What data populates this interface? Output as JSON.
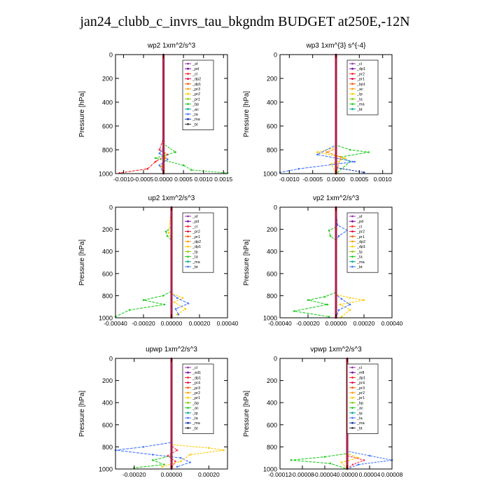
{
  "title": "jan24_clubb_c_invrs_tau_bkgndm  BUDGET at250E,-12N",
  "chart_data": [
    {
      "type": "line",
      "title": "wp2   1xm^2/s^3",
      "ylabel": "Pressure [hPa]",
      "xlim": [
        -0.0012,
        0.0016
      ],
      "ylim": [
        1000,
        0
      ],
      "yticks": [
        0,
        200,
        400,
        600,
        800,
        1000
      ],
      "xticks": [
        -0.001,
        -0.0005,
        0.0,
        0.0005,
        0.001,
        0.0015
      ],
      "xtick_labels": [
        "-0.0010",
        "-0.0005",
        "0.0000",
        "0.0005",
        "0.0010",
        "0.0015"
      ],
      "legend": [
        "_sf",
        "_pd",
        "_cl",
        "_dp2",
        "_dp1",
        "_pr3",
        "_pr2",
        "_pr1",
        "_bp",
        "_ac",
        "_ta",
        "_ma",
        "_bt"
      ],
      "series": [
        {
          "name": "_cl",
          "color": "#ff2020",
          "values": [
            [
              0,
              0
            ],
            [
              0,
              700
            ],
            [
              -0.0001,
              800
            ],
            [
              0.0001,
              840
            ],
            [
              -0.0002,
              900
            ],
            [
              -0.0004,
              960
            ],
            [
              -0.0011,
              995
            ]
          ]
        },
        {
          "name": "_pr1",
          "color": "#22cc22",
          "values": [
            [
              0,
              0
            ],
            [
              0,
              750
            ],
            [
              0.0003,
              820
            ],
            [
              -0.0002,
              870
            ],
            [
              0.0005,
              930
            ],
            [
              0.0007,
              970
            ],
            [
              0.0016,
              995
            ]
          ]
        },
        {
          "name": "_ta",
          "color": "#4477ff",
          "values": [
            [
              0,
              0
            ],
            [
              0,
              780
            ],
            [
              -0.0001,
              830
            ],
            [
              0.0001,
              880
            ],
            [
              -0.0001,
              930
            ],
            [
              0,
              1000
            ]
          ]
        },
        {
          "name": "_bp",
          "color": "#ff9900",
          "values": [
            [
              0,
              0
            ],
            [
              0,
              800
            ],
            [
              5e-05,
              870
            ],
            [
              -5e-05,
              940
            ],
            [
              0,
              1000
            ]
          ]
        },
        {
          "name": "_dp1",
          "color": "#9900cc",
          "values": [
            [
              0,
              0
            ],
            [
              0,
              1000
            ]
          ]
        }
      ]
    },
    {
      "type": "line",
      "title": "wp3   1xm^{3} s^{-4}",
      "ylabel": "Pressure [hPa]",
      "xlim": [
        -0.0012,
        0.0012
      ],
      "ylim": [
        1000,
        0
      ],
      "yticks": [
        0,
        200,
        400,
        600,
        800,
        1000
      ],
      "xticks": [
        -0.001,
        -0.0005,
        0.0,
        0.0005,
        0.001
      ],
      "xtick_labels": [
        "-0.0010",
        "-0.0005",
        "0.0000",
        "0.0005",
        "0.0010"
      ],
      "legend": [
        "_cl",
        "_dp1",
        "_pr2",
        "_pr1",
        "_bp1",
        "_ac",
        "_tp",
        "_ta",
        "_ma",
        "_bt"
      ],
      "series": [
        {
          "name": "_ac",
          "color": "#22cc22",
          "values": [
            [
              0,
              0
            ],
            [
              0,
              760
            ],
            [
              0.0003,
              800
            ],
            [
              0.0007,
              820
            ],
            [
              0.0001,
              860
            ],
            [
              0.0003,
              900
            ],
            [
              0,
              1000
            ]
          ]
        },
        {
          "name": "_pr2",
          "color": "#ffcc00",
          "values": [
            [
              0,
              0
            ],
            [
              0,
              780
            ],
            [
              -0.0004,
              820
            ],
            [
              0.0002,
              870
            ],
            [
              -0.0001,
              920
            ],
            [
              0,
              1000
            ]
          ]
        },
        {
          "name": "_ta",
          "color": "#4477ff",
          "values": [
            [
              0,
              0
            ],
            [
              0,
              760
            ],
            [
              -0.0004,
              840
            ],
            [
              0.0004,
              900
            ],
            [
              -0.0008,
              960
            ],
            [
              -0.0012,
              990
            ]
          ]
        },
        {
          "name": "_tp",
          "color": "#1133aa",
          "values": [
            [
              0,
              0
            ],
            [
              0,
              950
            ],
            [
              0.0006,
              990
            ]
          ]
        },
        {
          "name": "_dp1",
          "color": "#ff8800",
          "values": [
            [
              0,
              0
            ],
            [
              0,
              790
            ],
            [
              -0.0002,
              820
            ],
            [
              0.0001,
              860
            ],
            [
              0,
              1000
            ]
          ]
        },
        {
          "name": "_cl",
          "color": "#cc0000",
          "values": [
            [
              0,
              0
            ],
            [
              0,
              1000
            ]
          ]
        }
      ]
    },
    {
      "type": "line",
      "title": "up2   1xm^2/s^3",
      "ylabel": "Pressure [hPa]",
      "xlim": [
        -0.0004,
        0.0004
      ],
      "ylim": [
        1000,
        0
      ],
      "yticks": [
        0,
        200,
        400,
        600,
        800,
        1000
      ],
      "xticks": [
        -0.0004,
        -0.0002,
        0.0,
        0.0002,
        0.0004
      ],
      "xtick_labels": [
        "-0.00040",
        "-0.00020",
        "0.00000",
        "0.00020",
        "0.00040"
      ],
      "legend": [
        "_sf",
        "_pd",
        "_cl",
        "_pr2",
        "_pr1",
        "_dp2",
        "_dp1",
        "_tp",
        "_ta",
        "_ma",
        "_bt"
      ],
      "series": [
        {
          "name": "_dp1",
          "color": "#22cc22",
          "values": [
            [
              0,
              0
            ],
            [
              0,
              180
            ],
            [
              -4e-05,
              220
            ],
            [
              -3e-05,
              260
            ],
            [
              0,
              300
            ],
            [
              0,
              760
            ],
            [
              -6e-05,
              800
            ],
            [
              -0.0002,
              840
            ],
            [
              -5e-05,
              880
            ],
            [
              -0.0003,
              930
            ],
            [
              -0.0004,
              990
            ]
          ]
        },
        {
          "name": "_pr2",
          "color": "#ffcc00",
          "values": [
            [
              0,
              0
            ],
            [
              -2e-05,
              230
            ],
            [
              0,
              300
            ],
            [
              0,
              780
            ],
            [
              8e-05,
              820
            ],
            [
              2e-05,
              860
            ],
            [
              0.0001,
              920
            ],
            [
              4e-05,
              970
            ]
          ]
        },
        {
          "name": "_tp",
          "color": "#4477ff",
          "values": [
            [
              0,
              0
            ],
            [
              0,
              780
            ],
            [
              4e-05,
              820
            ],
            [
              0.00012,
              870
            ],
            [
              3e-05,
              920
            ],
            [
              5e-05,
              970
            ]
          ]
        },
        {
          "name": "_cl",
          "color": "#cc0000",
          "values": [
            [
              0,
              0
            ],
            [
              0,
              1000
            ]
          ]
        }
      ]
    },
    {
      "type": "line",
      "title": "vp2   1xm^2/s^3",
      "ylabel": "Pressure [hPa]",
      "xlim": [
        -0.0004,
        0.0004
      ],
      "ylim": [
        1000,
        0
      ],
      "yticks": [
        0,
        200,
        400,
        600,
        800,
        1000
      ],
      "xticks": [
        -0.0004,
        -0.0002,
        0.0,
        0.0002,
        0.0004
      ],
      "xtick_labels": [
        "-0.00040",
        "-0.00020",
        "0.00000",
        "0.00020",
        "0.00040"
      ],
      "legend": [
        "_sf",
        "_pd",
        "_cl",
        "_pr2",
        "_pr1",
        "_dp2",
        "_dp1",
        "_tp",
        "_ta",
        "_ma",
        "_bt"
      ],
      "series": [
        {
          "name": "_dp1",
          "color": "#22cc22",
          "values": [
            [
              0,
              0
            ],
            [
              0,
              180
            ],
            [
              -5e-05,
              210
            ],
            [
              -4e-05,
              260
            ],
            [
              0,
              300
            ],
            [
              0,
              770
            ],
            [
              -8e-05,
              810
            ],
            [
              -0.0002,
              840
            ],
            [
              -6e-05,
              880
            ],
            [
              -0.0003,
              940
            ],
            [
              -5e-05,
              990
            ]
          ]
        },
        {
          "name": "_pr2",
          "color": "#ffcc00",
          "values": [
            [
              0,
              0
            ],
            [
              0,
              790
            ],
            [
              0.0001,
              820
            ],
            [
              0.0002,
              840
            ],
            [
              3e-05,
              880
            ],
            [
              0.0001,
              930
            ],
            [
              4e-05,
              990
            ]
          ]
        },
        {
          "name": "_tp",
          "color": "#4477ff",
          "values": [
            [
              0,
              0
            ],
            [
              1e-05,
              160
            ],
            [
              8e-05,
              210
            ],
            [
              2e-05,
              260
            ],
            [
              0,
              300
            ],
            [
              0,
              790
            ],
            [
              4e-05,
              830
            ],
            [
              0.0001,
              880
            ],
            [
              2e-05,
              930
            ],
            [
              0,
              1000
            ]
          ]
        },
        {
          "name": "_cl",
          "color": "#cc0000",
          "values": [
            [
              0,
              0
            ],
            [
              0,
              1000
            ]
          ]
        }
      ]
    },
    {
      "type": "line",
      "title": "upwp   1xm^2/s^3",
      "ylabel": "Pressure [hPa]",
      "xlim": [
        -0.0003,
        0.0003
      ],
      "ylim": [
        1000,
        0
      ],
      "yticks": [
        0,
        200,
        400,
        600,
        800,
        1000
      ],
      "xticks": [
        -0.0002,
        0.0,
        0.0002
      ],
      "xtick_labels": [
        "-0.00020",
        "0.00000",
        "0.00020"
      ],
      "legend": [
        "_cl",
        "_ed1",
        "_dp1",
        "_pr4",
        "_pr3",
        "_pr2",
        "_pr1",
        "_bp",
        "_ac",
        "_tp",
        "_ta",
        "_ma",
        "_bt"
      ],
      "series": [
        {
          "name": "_ta",
          "color": "#4477ff",
          "values": [
            [
              0,
              0
            ],
            [
              0,
              760
            ],
            [
              -0.00015,
              800
            ],
            [
              -0.0003,
              830
            ],
            [
              -0.0001,
              870
            ],
            [
              5e-05,
              900
            ],
            [
              0.0001,
              940
            ],
            [
              3e-05,
              980
            ]
          ]
        },
        {
          "name": "_pr1",
          "color": "#ffcc00",
          "values": [
            [
              0,
              0
            ],
            [
              0,
              780
            ],
            [
              0.0002,
              810
            ],
            [
              0.00028,
              830
            ],
            [
              0.0001,
              870
            ],
            [
              5e-05,
              930
            ],
            [
              -5e-05,
              980
            ]
          ]
        },
        {
          "name": "_ac",
          "color": "#22cc22",
          "values": [
            [
              0,
              0
            ],
            [
              0,
              880
            ],
            [
              -0.0001,
              920
            ],
            [
              -4e-05,
              960
            ],
            [
              -0.0002,
              990
            ]
          ]
        },
        {
          "name": "_dp1",
          "color": "#ff3355",
          "values": [
            [
              0,
              0
            ],
            [
              0,
              790
            ],
            [
              3e-05,
              830
            ],
            [
              -2e-05,
              880
            ],
            [
              2e-05,
              930
            ],
            [
              0,
              1000
            ]
          ]
        },
        {
          "name": "_cl",
          "color": "#9933aa",
          "values": [
            [
              0,
              0
            ],
            [
              0,
              1000
            ]
          ]
        }
      ]
    },
    {
      "type": "line",
      "title": "vpwp   1xm^2/s^3",
      "ylabel": "Pressure [hPa]",
      "xlim": [
        -0.00012,
        8e-05
      ],
      "ylim": [
        1000,
        0
      ],
      "yticks": [
        0,
        200,
        400,
        600,
        800,
        1000
      ],
      "xticks": [
        -0.00012,
        -8e-05,
        -4e-05,
        0.0,
        4e-05,
        8e-05
      ],
      "xtick_labels": [
        "-0.00012",
        "-0.00008",
        "-0.00004",
        "0.00000",
        "0.00004",
        "0.00008"
      ],
      "legend": [
        "_cl",
        "_mfl",
        "_dp1",
        "_pr4",
        "_pr3",
        "_pr2",
        "_pr1",
        "_bp",
        "_ac",
        "_tp",
        "_ta",
        "_ma",
        "_bt"
      ],
      "series": [
        {
          "name": "_ac",
          "color": "#22cc22",
          "values": [
            [
              0,
              0
            ],
            [
              0,
              860
            ],
            [
              -4e-05,
              890
            ],
            [
              -0.0001,
              920
            ],
            [
              -3e-05,
              950
            ],
            [
              0,
              1000
            ]
          ]
        },
        {
          "name": "_ta",
          "color": "#4477ff",
          "values": [
            [
              0,
              0
            ],
            [
              0,
              840
            ],
            [
              4e-05,
              880
            ],
            [
              8e-05,
              920
            ],
            [
              2e-05,
              960
            ],
            [
              0,
              1000
            ]
          ]
        },
        {
          "name": "_pr1",
          "color": "#ffcc00",
          "values": [
            [
              0,
              0
            ],
            [
              5e-06,
              180
            ],
            [
              1e-05,
              220
            ],
            [
              0,
              260
            ],
            [
              0,
              860
            ],
            [
              2e-05,
              900
            ],
            [
              -1e-05,
              940
            ],
            [
              0,
              1000
            ]
          ]
        },
        {
          "name": "_dp1",
          "color": "#ff3355",
          "values": [
            [
              0,
              0
            ],
            [
              0,
              880
            ],
            [
              3e-05,
              920
            ],
            [
              1e-05,
              960
            ],
            [
              0,
              1000
            ]
          ]
        },
        {
          "name": "_cl",
          "color": "#9933aa",
          "values": [
            [
              0,
              0
            ],
            [
              0,
              1000
            ]
          ]
        }
      ]
    }
  ]
}
